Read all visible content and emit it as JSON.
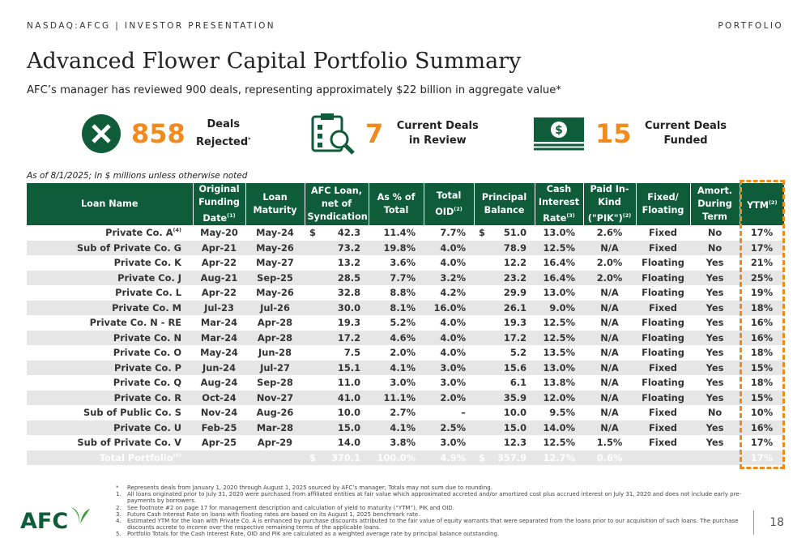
{
  "header": {
    "left": "NASDAQ:AFCG | INVESTOR PRESENTATION",
    "right": "PORTFOLIO"
  },
  "title": "Advanced Flower Capital Portfolio Summary",
  "subtitle": "AFC’s manager has reviewed 900 deals, representing approximately $22 billion in aggregate value*",
  "stats": [
    {
      "value": "858",
      "label": "Deals Rejected",
      "sup": "*"
    },
    {
      "value": "7",
      "label": "Current Deals in Review"
    },
    {
      "value": "15",
      "label": "Current Deals Funded"
    }
  ],
  "note": "As of 8/1/2025; In $ millions unless otherwise noted",
  "table": {
    "columns": [
      {
        "text": "Loan Name"
      },
      {
        "text": "Original Funding Date",
        "sup": "(1)"
      },
      {
        "text": "Loan Maturity"
      },
      {
        "text": "AFC Loan, net of Syndication"
      },
      {
        "text": "As % of Total"
      },
      {
        "text": "Total OID",
        "sup": "(2)"
      },
      {
        "text": "Principal Balance"
      },
      {
        "text": "Cash Interest Rate",
        "sup": "(3)"
      },
      {
        "text": "Paid In-Kind (\"PIK\")",
        "sup": "(2)"
      },
      {
        "text": "Fixed/ Floating"
      },
      {
        "text": "Amort. During Term"
      },
      {
        "text": "YTM",
        "sup": "(2)"
      }
    ],
    "rows": [
      [
        {
          "text": "Private Co. A",
          "sup": "(4)"
        },
        "May-20",
        "May-24",
        {
          "cur": "$",
          "text": "42.3"
        },
        "11.4%",
        "7.7%",
        {
          "cur": "$",
          "text": "51.0"
        },
        "13.0%",
        "2.6%",
        "Fixed",
        "No",
        "17%"
      ],
      [
        "Sub of Private Co. G",
        "Apr-21",
        "May-26",
        "73.2",
        "19.8%",
        "4.0%",
        "78.9",
        "12.5%",
        "N/A",
        "Fixed",
        "No",
        "17%"
      ],
      [
        "Private Co. K",
        "Apr-22",
        "May-27",
        "13.2",
        "3.6%",
        "4.0%",
        "12.2",
        "16.4%",
        "2.0%",
        "Floating",
        "Yes",
        "21%"
      ],
      [
        "Private Co. J",
        "Aug-21",
        "Sep-25",
        "28.5",
        "7.7%",
        "3.2%",
        "23.2",
        "16.4%",
        "2.0%",
        "Floating",
        "Yes",
        "25%"
      ],
      [
        "Private Co. L",
        "Apr-22",
        "May-26",
        "32.8",
        "8.8%",
        "4.2%",
        "29.9",
        "13.0%",
        "N/A",
        "Floating",
        "Yes",
        "19%"
      ],
      [
        "Private Co. M",
        "Jul-23",
        "Jul-26",
        "30.0",
        "8.1%",
        "16.0%",
        "26.1",
        "9.0%",
        "N/A",
        "Fixed",
        "Yes",
        "18%"
      ],
      [
        "Private Co. N - RE",
        "Mar-24",
        "Apr-28",
        "19.3",
        "5.2%",
        "4.0%",
        "19.3",
        "12.5%",
        "N/A",
        "Floating",
        "Yes",
        "16%"
      ],
      [
        "Private Co. N",
        "Mar-24",
        "Apr-28",
        "17.2",
        "4.6%",
        "4.0%",
        "17.2",
        "12.5%",
        "N/A",
        "Floating",
        "Yes",
        "16%"
      ],
      [
        "Private Co. O",
        "May-24",
        "Jun-28",
        "7.5",
        "2.0%",
        "4.0%",
        "5.2",
        "13.5%",
        "N/A",
        "Floating",
        "Yes",
        "18%"
      ],
      [
        "Private Co. P",
        "Jun-24",
        "Jul-27",
        "15.1",
        "4.1%",
        "3.0%",
        "15.6",
        "13.0%",
        "N/A",
        "Fixed",
        "Yes",
        "15%"
      ],
      [
        "Private Co. Q",
        "Aug-24",
        "Sep-28",
        "11.0",
        "3.0%",
        "3.0%",
        "6.1",
        "13.8%",
        "N/A",
        "Floating",
        "Yes",
        "18%"
      ],
      [
        "Private Co. R",
        "Oct-24",
        "Nov-27",
        "41.0",
        "11.1%",
        "2.0%",
        "35.9",
        "12.0%",
        "N/A",
        "Floating",
        "Yes",
        "15%"
      ],
      [
        "Sub of Public Co. S",
        "Nov-24",
        "Aug-26",
        "10.0",
        "2.7%",
        "–",
        "10.0",
        "9.5%",
        "N/A",
        "Fixed",
        "No",
        "10%"
      ],
      [
        "Private Co. U",
        "Feb-25",
        "Mar-28",
        "15.0",
        "4.1%",
        "2.5%",
        "15.0",
        "14.0%",
        "N/A",
        "Fixed",
        "Yes",
        "16%"
      ],
      [
        "Sub of Private Co. V",
        "Apr-25",
        "Apr-29",
        "14.0",
        "3.8%",
        "3.0%",
        "12.3",
        "12.5%",
        "1.5%",
        "Fixed",
        "Yes",
        "17%"
      ]
    ],
    "total": [
      {
        "text": "Total Portfolio",
        "sup": "(5)"
      },
      null,
      null,
      {
        "cur": "$",
        "text": "370.1"
      },
      "100.0%",
      "4.9%",
      {
        "cur": "$",
        "text": "357.9"
      },
      "12.7%",
      "0.6%",
      null,
      null,
      "17%"
    ]
  },
  "footnotes": [
    {
      "marker": "*",
      "text": "Represents deals from January 1, 2020 through August 1, 2025 sourced by AFC’s manager; Totals may not sum due to rounding."
    },
    {
      "marker": "1.",
      "text": "All loans originated prior to July 31, 2020 were purchased from affiliated entities at fair value which approximated accreted and/or amortized cost plus accrued interest on July 31, 2020 and does not include early pre-payments by borrowers."
    },
    {
      "marker": "2.",
      "text": "See footnote #2 on page 17 for management description and calculation of yield to maturity (“YTM”), PIK and OID."
    },
    {
      "marker": "3.",
      "text": "Future Cash Interest Rate on loans with floating rates are based on its August 1, 2025 benchmark rate."
    },
    {
      "marker": "4.",
      "text": "Estimated YTM for the loan with Private Co. A is enhanced by purchase discounts attributed to the fair value of equity warrants that were separated from the loans prior to our acquisition of such loans. The purchase discounts accrete to income over the respective remaining terms of the applicable loans."
    },
    {
      "marker": "5.",
      "text": "Portfolio Totals for the Cash Interest Rate, OID and PIK are calculated as a weighted average rate by principal balance outstanding."
    }
  ],
  "footer": {
    "logo": "AFC",
    "page": "18"
  }
}
